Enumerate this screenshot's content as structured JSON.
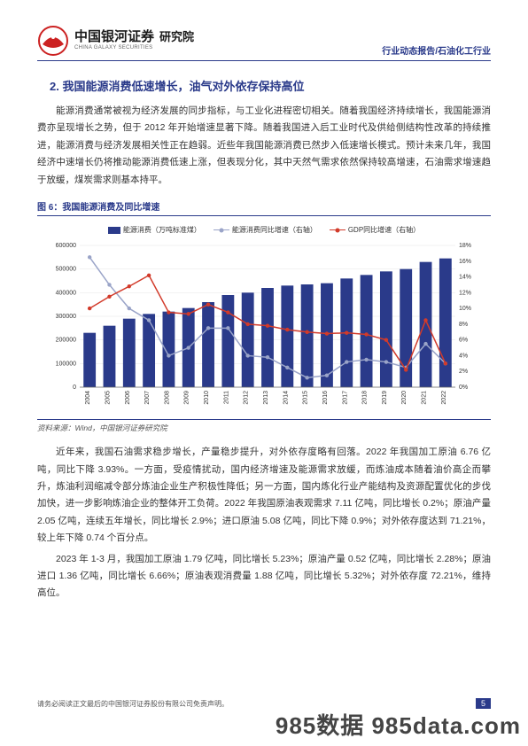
{
  "header": {
    "brand_cn": "中国银河证券",
    "brand_en": "CHINA GALAXY SECURITIES",
    "brand_unit": "研究院",
    "right": "行业动态报告/石油化工行业"
  },
  "section_title": "2. 我国能源消费低速增长，油气对外依存保持高位",
  "para1": "能源消费通常被视为经济发展的同步指标，与工业化进程密切相关。随着我国经济持续增长，我国能源消费亦呈现增长之势，但于 2012 年开始增速显著下降。随着我国进入后工业时代及供给侧结构性改革的持续推进，能源消费与经济发展相关性正在趋弱。近些年我国能源消费已然步入低速增长模式。预计未来几年，我国经济中速增长仍将推动能源消费低速上涨，但表现分化，其中天然气需求依然保持较高增速，石油需求增速趋于放缓，煤炭需求则基本持平。",
  "fig_caption": "图 6：我国能源消费及同比增速",
  "fig_source": "资料来源：Wind，中国银河证券研究院",
  "chart": {
    "type": "bar+line",
    "legend": {
      "bar": "能源消费（万吨标准煤）",
      "line1": "能源消费同比增速（右轴）",
      "line2": "GDP同比增速（右轴）"
    },
    "colors": {
      "bar": "#2a3a8a",
      "line1": "#9aa4c8",
      "line2": "#d23a2a",
      "axis": "#666666",
      "grid": "#e6e6e6",
      "text": "#333333",
      "bg": "#ffffff"
    },
    "y_left": {
      "min": 0,
      "max": 600000,
      "step": 100000,
      "fontsize": 7
    },
    "y_right": {
      "min": 0,
      "max": 18,
      "step": 2,
      "suffix": "%",
      "fontsize": 7
    },
    "x_fontsize": 7,
    "bar_width": 0.62,
    "line_width": 1.5,
    "marker_size": 2.2,
    "years": [
      "2004",
      "2005",
      "2006",
      "2007",
      "2008",
      "2009",
      "2010",
      "2011",
      "2012",
      "2013",
      "2014",
      "2015",
      "2016",
      "2017",
      "2018",
      "2019",
      "2020",
      "2021",
      "2022"
    ],
    "bar_values": [
      230000,
      260000,
      290000,
      310000,
      320000,
      335000,
      360000,
      390000,
      400000,
      420000,
      430000,
      435000,
      440000,
      460000,
      475000,
      490000,
      500000,
      530000,
      545000
    ],
    "line1_values": [
      16.5,
      13.0,
      10.0,
      8.5,
      4.0,
      5.0,
      7.5,
      7.5,
      4.0,
      3.8,
      2.5,
      1.2,
      1.5,
      3.2,
      3.5,
      3.2,
      2.5,
      5.5,
      3.0
    ],
    "line2_values": [
      10.0,
      11.5,
      12.8,
      14.2,
      9.5,
      9.3,
      10.5,
      9.5,
      8.0,
      7.8,
      7.3,
      7.0,
      6.8,
      6.9,
      6.7,
      6.0,
      2.2,
      8.5,
      3.0
    ]
  },
  "para2": "近年来，我国石油需求稳步增长，产量稳步提升，对外依存度略有回落。2022 年我国加工原油 6.76 亿吨，同比下降 3.93%。一方面，受疫情扰动，国内经济增速及能源需求放缓，而炼油成本随着油价高企而攀升，炼油利润缩减令部分炼油企业生产积极性降低；另一方面，国内炼化行业产能结构及资源配置优化的步伐加快，进一步影响炼油企业的整体开工负荷。2022 年我国原油表观需求 7.11 亿吨，同比增长 0.2%；原油产量 2.05 亿吨，连续五年增长，同比增长 2.9%；进口原油 5.08 亿吨，同比下降 0.9%；对外依存度达到 71.21%，较上年下降 0.74 个百分点。",
  "para3": "2023 年 1-3 月，我国加工原油 1.79 亿吨，同比增长 5.23%；原油产量 0.52 亿吨，同比增长 2.28%；原油进口 1.36 亿吨，同比增长 6.66%；原油表观消费量 1.88 亿吨，同比增长 5.32%；对外依存度 72.21%，维持高位。",
  "footer": {
    "disclaimer": "请务必阅读正文最后的中国银河证券股份有限公司免责声明。",
    "page": "5"
  },
  "watermark": "985数据 985data.com"
}
